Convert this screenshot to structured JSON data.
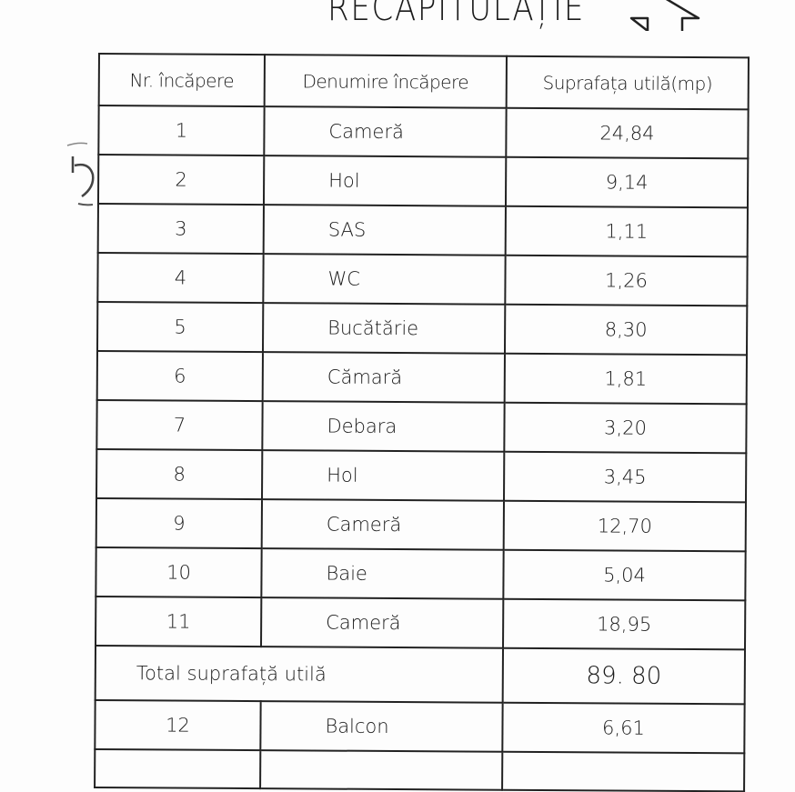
{
  "document": {
    "title": "RECAPITULAȚIE",
    "title_icon": "arrow-up-outline-icon",
    "margin_note": "5"
  },
  "table": {
    "headers": [
      "Nr. încăpere",
      "Denumire încăpere",
      "Suprafața utilă(mp)"
    ],
    "rows": [
      {
        "nr": "1",
        "name": "Cameră",
        "area": "24,84"
      },
      {
        "nr": "2",
        "name": "Hol",
        "area": "9,14"
      },
      {
        "nr": "3",
        "name": "SAS",
        "area": "1,11"
      },
      {
        "nr": "4",
        "name": "WC",
        "area": "1,26"
      },
      {
        "nr": "5",
        "name": "Bucătărie",
        "area": "8,30"
      },
      {
        "nr": "6",
        "name": "Cămară",
        "area": "1,81"
      },
      {
        "nr": "7",
        "name": "Debara",
        "area": "3,20"
      },
      {
        "nr": "8",
        "name": "Hol",
        "area": "3,45"
      },
      {
        "nr": "9",
        "name": "Cameră",
        "area": "12,70"
      },
      {
        "nr": "10",
        "name": "Baie",
        "area": "5,04"
      },
      {
        "nr": "11",
        "name": "Cameră",
        "area": "18,95"
      }
    ],
    "total": {
      "label": "Total suprafață utilă",
      "value": "89. 80"
    },
    "extra_rows": [
      {
        "nr": "12",
        "name": "Balcon",
        "area": "6,61"
      }
    ]
  }
}
